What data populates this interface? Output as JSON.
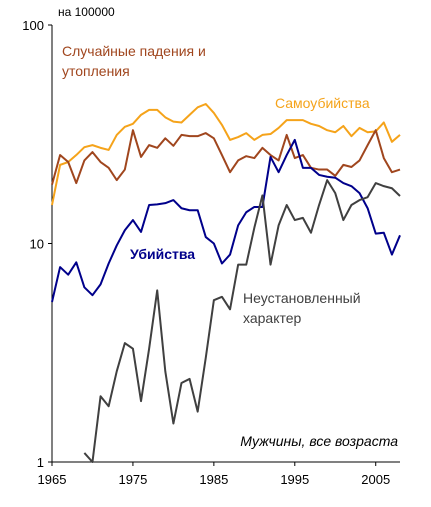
{
  "chart_data": {
    "type": "line",
    "y_label": "на 100000",
    "annotation": "Мужчины, все возраста",
    "x": [
      1965,
      1966,
      1967,
      1968,
      1969,
      1970,
      1971,
      1972,
      1973,
      1974,
      1975,
      1976,
      1977,
      1978,
      1979,
      1980,
      1981,
      1982,
      1983,
      1984,
      1985,
      1986,
      1987,
      1988,
      1989,
      1990,
      1991,
      1992,
      1993,
      1994,
      1995,
      1996,
      1997,
      1998,
      1999,
      2000,
      2001,
      2002,
      2003,
      2004,
      2005,
      2006,
      2007,
      2008
    ],
    "xlim": [
      1965,
      2008
    ],
    "xticks": [
      1965,
      1975,
      1985,
      1995,
      2005
    ],
    "ylim": [
      1,
      100
    ],
    "yticks": [
      1,
      10,
      100
    ],
    "log_y": true,
    "series": [
      {
        "label": [
          "Самоубийства"
        ],
        "color": "#f5a31a",
        "bold": false,
        "values": [
          15,
          22.9,
          23.6,
          25.4,
          27.6,
          28.2,
          27.4,
          26.8,
          31.4,
          34.2,
          35.3,
          38.8,
          40.9,
          40.9,
          37.8,
          36.1,
          35.8,
          38.8,
          42,
          43.5,
          39.6,
          34.9,
          29.8,
          30.7,
          32,
          29.8,
          31.4,
          31.7,
          33.8,
          36.7,
          36.7,
          36.7,
          35.3,
          34.5,
          33,
          32.3,
          34.5,
          31,
          33.8,
          32.3,
          32.6,
          35.8,
          29.2,
          31.4
        ]
      },
      {
        "label": [
          "Случайные падения и",
          "утопления"
        ],
        "color": "#a0461e",
        "bold": false,
        "values": [
          18.6,
          25.4,
          23.6,
          18.9,
          24,
          26.2,
          23.6,
          22.2,
          19.5,
          21.8,
          33,
          24.9,
          28.2,
          27.4,
          30.3,
          28,
          31.4,
          31,
          31,
          32,
          30.3,
          25.4,
          21.2,
          24,
          25.1,
          24.6,
          27.4,
          25.4,
          24,
          31.4,
          24.6,
          25.4,
          22.2,
          21.8,
          21.8,
          20.4,
          22.9,
          22.4,
          24,
          28.2,
          33,
          24.6,
          21.2,
          21.8
        ]
      },
      {
        "label": [
          "Убийства"
        ],
        "color": "#00008b",
        "bold": true,
        "values": [
          5.4,
          7.8,
          7.2,
          8.2,
          6.3,
          5.8,
          6.5,
          8.1,
          9.8,
          11.5,
          12.8,
          11.3,
          15,
          15.1,
          15.3,
          15.8,
          14.5,
          14.2,
          14.2,
          10.7,
          10,
          8.1,
          8.9,
          12.1,
          13.9,
          14.7,
          14.7,
          24.9,
          21.2,
          25.4,
          29.8,
          22.2,
          22.2,
          20.6,
          20.2,
          20,
          18.9,
          18.3,
          17,
          14.5,
          11.1,
          11.2,
          8.9,
          10.9
        ]
      },
      {
        "label": [
          "Неустановленный",
          "характер"
        ],
        "color": "#404040",
        "bold": false,
        "values": [
          null,
          null,
          null,
          null,
          1.1,
          1,
          2,
          1.8,
          2.6,
          3.5,
          3.3,
          1.9,
          3.3,
          6.1,
          2.6,
          1.5,
          2.3,
          2.4,
          1.7,
          3,
          5.5,
          5.7,
          5,
          8,
          8,
          11.8,
          16.6,
          8,
          12.1,
          15,
          12.8,
          13.1,
          11.2,
          15,
          19.5,
          17,
          12.8,
          15,
          15.8,
          16.3,
          18.9,
          18.3,
          17.9,
          16.5
        ]
      }
    ]
  }
}
